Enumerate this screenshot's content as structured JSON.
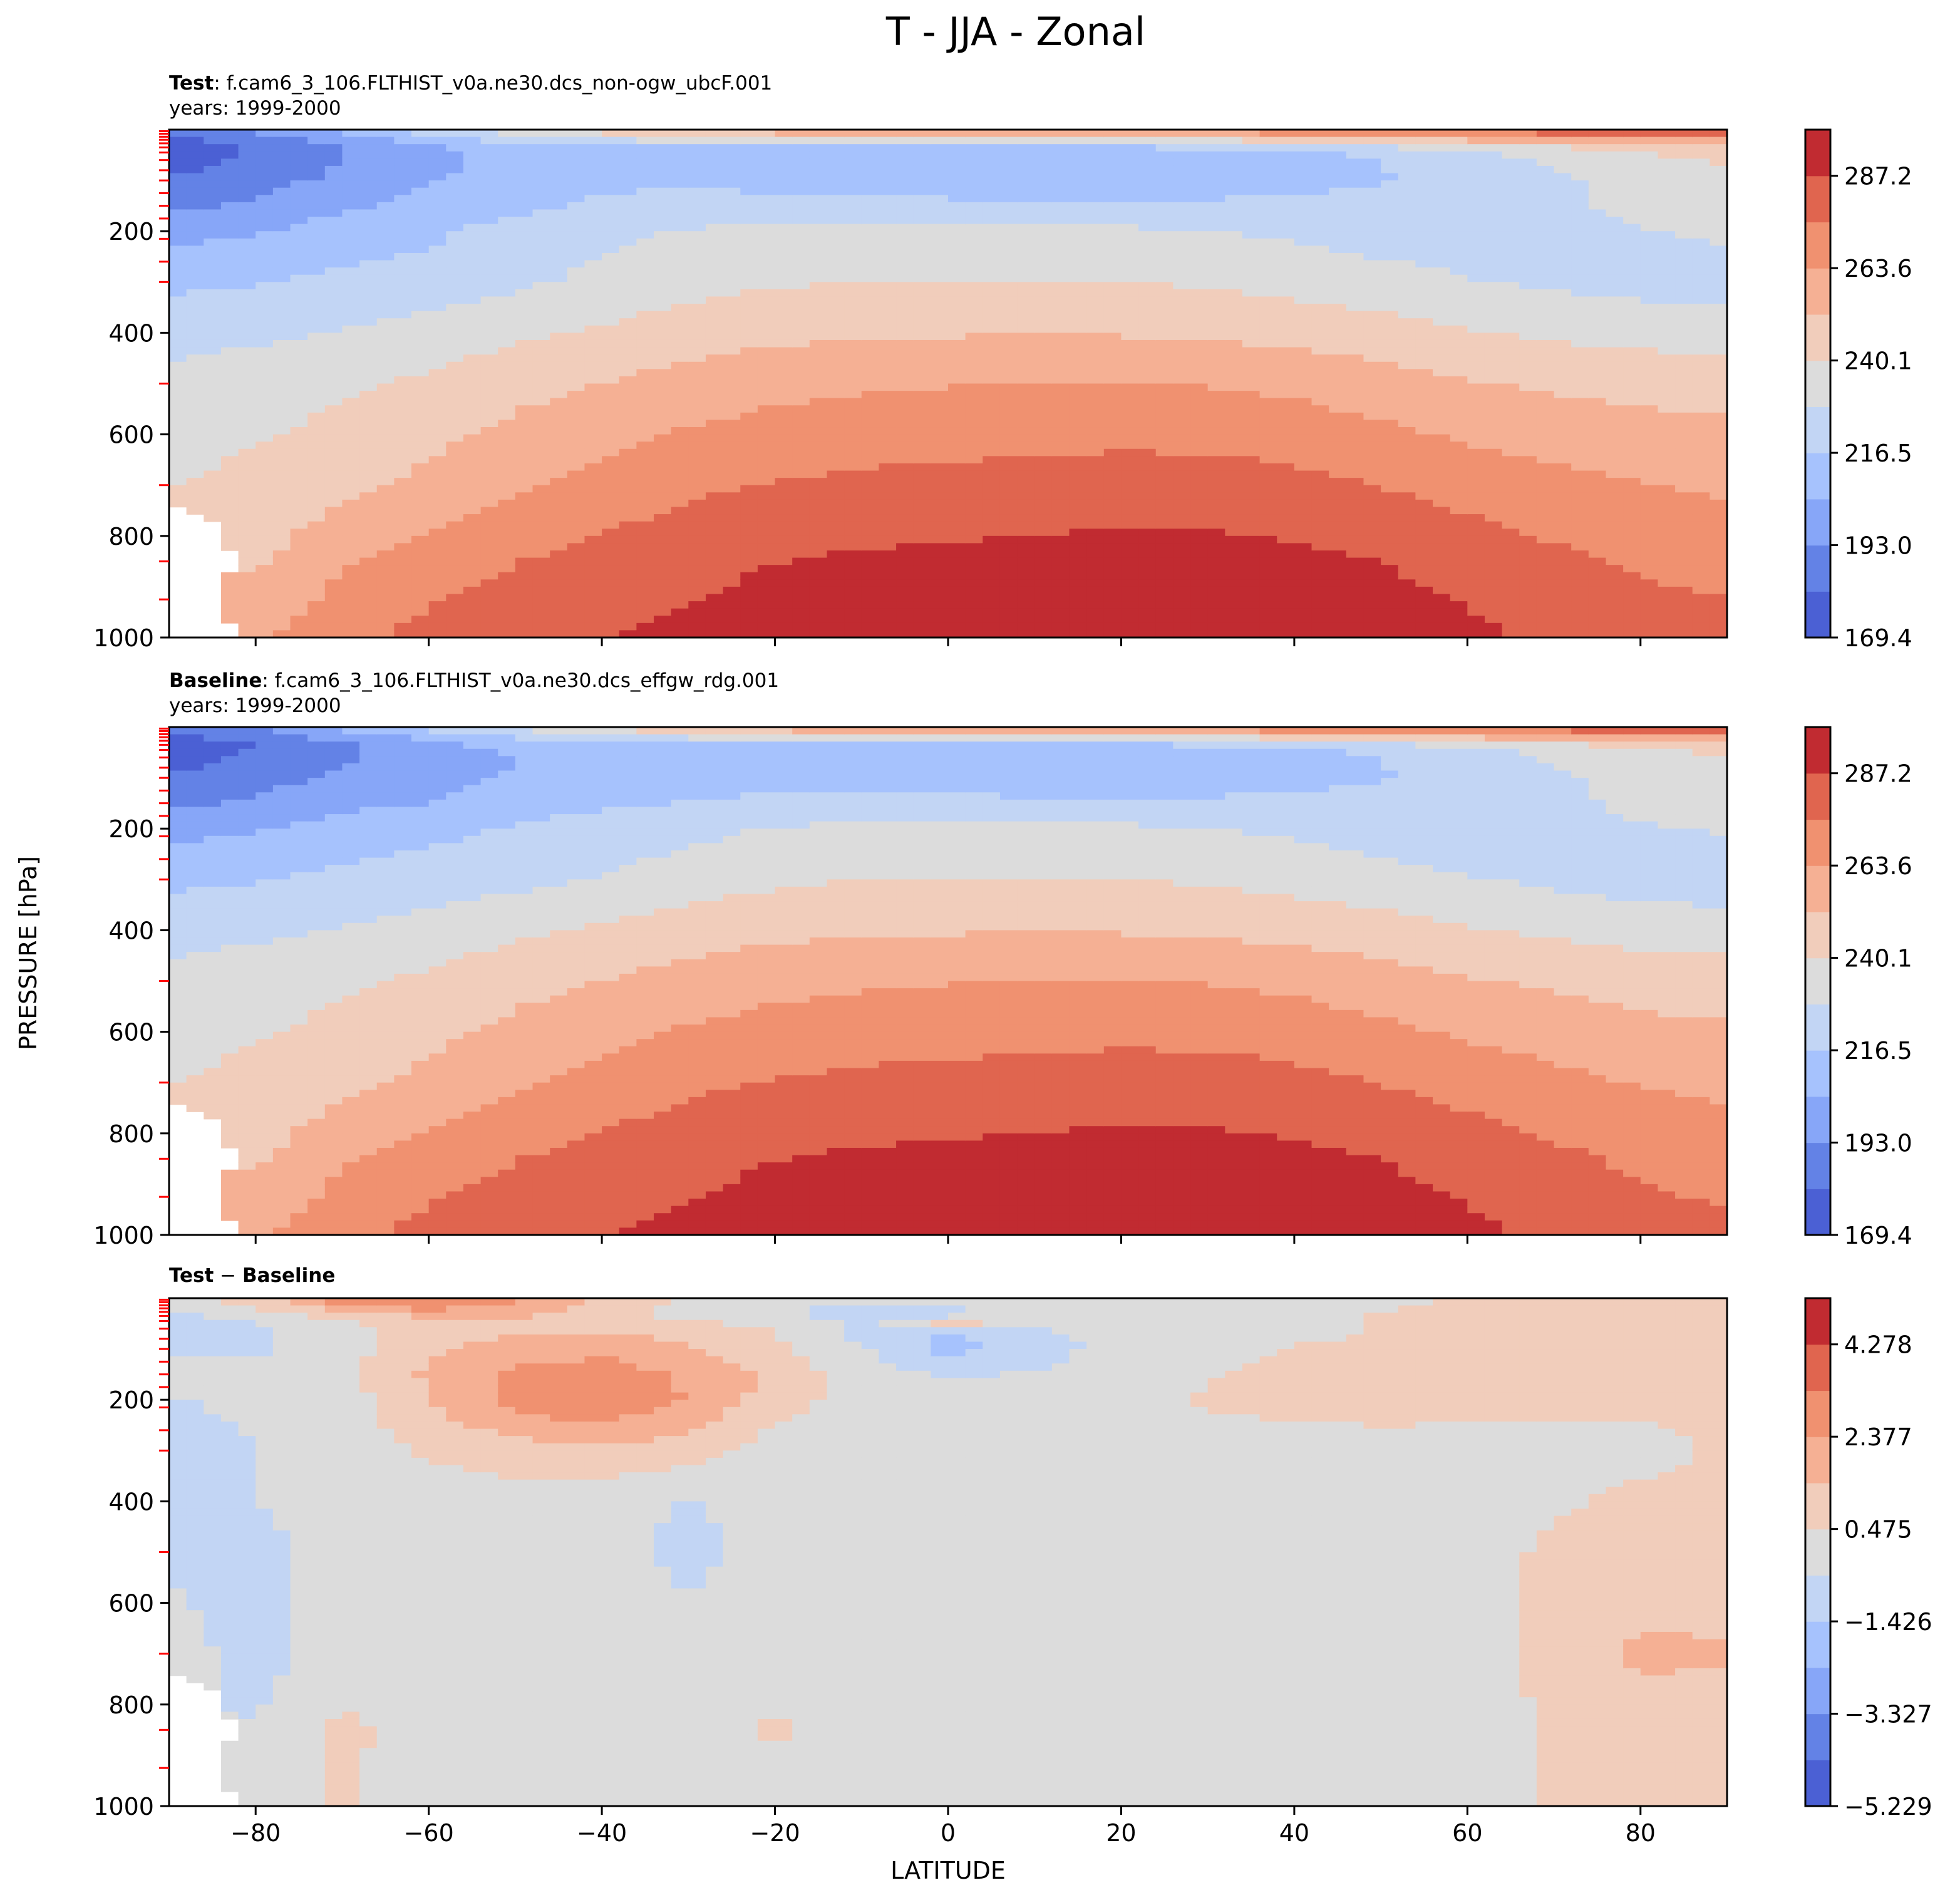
{
  "suptitle": "T - JJA - Zonal",
  "ylabel": "PRESSURE [hPa]",
  "xlabel": "LATITUDE",
  "chart_data": [
    {
      "type": "heatmap",
      "title_bold": "Test",
      "title_rest": ": f.cam6_3_106.FLTHIST_v0a.ne30.dcs_non-ogw_ubcF.001",
      "subtitle": "years: 1999-2000",
      "xlim": [
        -90,
        90
      ],
      "ylim": [
        1000,
        0
      ],
      "yticks": [
        "200",
        "400",
        "600",
        "800",
        "1000"
      ],
      "xticks": [],
      "colorbar": {
        "colors": [
          "#4b60d4",
          "#6382e6",
          "#87a6f8",
          "#a6c2fd",
          "#c2d5f4",
          "#dcdcdc",
          "#f1cdbb",
          "#f5b094",
          "#f09170",
          "#e0654f",
          "#c12b31"
        ],
        "ticks": [
          "169.4",
          "193.0",
          "216.5",
          "240.1",
          "263.6",
          "287.2"
        ],
        "range": [
          169.4,
          299.0
        ]
      },
      "pressure_levels": [
        1000,
        850,
        700,
        500,
        400,
        300,
        200,
        150,
        100,
        70,
        50,
        30,
        10
      ],
      "latitudes": [
        -90,
        -80,
        -70,
        -60,
        -50,
        -40,
        -30,
        -20,
        -10,
        0,
        10,
        20,
        30,
        40,
        50,
        60,
        70,
        80,
        90
      ],
      "values": [
        [
          null,
          262,
          272,
          279,
          283,
          287,
          290,
          293,
          295,
          296,
          297,
          298,
          298,
          297,
          294,
          290,
          285,
          281,
          279
        ],
        [
          null,
          250,
          262,
          270,
          275,
          280,
          284,
          287,
          289,
          290,
          291,
          292,
          292,
          290,
          287,
          283,
          278,
          274,
          272
        ],
        [
          240,
          243,
          248,
          255,
          262,
          268,
          273,
          276,
          278,
          279,
          280,
          281,
          281,
          279,
          275,
          271,
          267,
          264,
          262
        ],
        [
          232,
          235,
          238,
          242,
          248,
          252,
          257,
          260,
          262,
          263,
          264,
          264,
          263,
          261,
          257,
          253,
          250,
          248,
          247
        ],
        [
          224,
          226,
          229,
          233,
          238,
          242,
          246,
          249,
          250,
          251,
          251,
          251,
          250,
          248,
          245,
          241,
          238,
          236,
          235
        ],
        [
          214,
          216,
          219,
          222,
          226,
          231,
          236,
          239,
          240,
          240,
          240,
          240,
          239,
          236,
          233,
          229,
          226,
          224,
          223
        ],
        [
          200,
          204,
          210,
          214,
          221,
          226,
          229,
          231,
          232,
          231,
          231,
          230,
          229,
          226,
          223,
          222,
          223,
          228,
          230
        ],
        [
          190,
          195,
          203,
          208,
          214,
          219,
          221,
          222,
          221,
          220,
          219,
          219,
          219,
          219,
          220,
          222,
          225,
          233,
          236
        ],
        [
          182,
          188,
          196,
          204,
          210,
          214,
          214,
          212,
          210,
          208,
          208,
          209,
          210,
          213,
          216,
          220,
          226,
          234,
          238
        ],
        [
          178,
          184,
          193,
          202,
          209,
          213,
          211,
          208,
          205,
          204,
          204,
          205,
          208,
          212,
          216,
          222,
          229,
          236,
          240
        ],
        [
          176,
          182,
          192,
          202,
          209,
          213,
          212,
          210,
          208,
          207,
          207,
          208,
          210,
          214,
          219,
          225,
          232,
          239,
          243
        ],
        [
          175,
          182,
          193,
          204,
          212,
          217,
          218,
          217,
          216,
          216,
          217,
          219,
          221,
          225,
          230,
          236,
          242,
          247,
          250
        ],
        [
          182,
          192,
          206,
          219,
          230,
          240,
          247,
          252,
          255,
          257,
          258,
          260,
          262,
          265,
          268,
          272,
          276,
          279,
          281
        ]
      ]
    },
    {
      "type": "heatmap",
      "title_bold": "Baseline",
      "title_rest": ": f.cam6_3_106.FLTHIST_v0a.ne30.dcs_effgw_rdg.001",
      "subtitle": "years: 1999-2000",
      "xlim": [
        -90,
        90
      ],
      "ylim": [
        1000,
        0
      ],
      "yticks": [
        "200",
        "400",
        "600",
        "800",
        "1000"
      ],
      "xticks": [],
      "colorbar": {
        "colors": [
          "#4b60d4",
          "#6382e6",
          "#87a6f8",
          "#a6c2fd",
          "#c2d5f4",
          "#dcdcdc",
          "#f1cdbb",
          "#f5b094",
          "#f09170",
          "#e0654f",
          "#c12b31"
        ],
        "ticks": [
          "169.4",
          "193.0",
          "216.5",
          "240.1",
          "263.6",
          "287.2"
        ],
        "range": [
          169.4,
          299.0
        ]
      },
      "pressure_levels": [
        1000,
        850,
        700,
        500,
        400,
        300,
        200,
        150,
        100,
        70,
        50,
        30,
        10
      ],
      "latitudes": [
        -90,
        -80,
        -70,
        -60,
        -50,
        -40,
        -30,
        -20,
        -10,
        0,
        10,
        20,
        30,
        40,
        50,
        60,
        70,
        80,
        90
      ],
      "values": [
        [
          null,
          262,
          272,
          279,
          283,
          287,
          290,
          293,
          295,
          296,
          297,
          298,
          298,
          297,
          294,
          290,
          285,
          280,
          278
        ],
        [
          null,
          250,
          262,
          270,
          275,
          280,
          284,
          287,
          289,
          290,
          291,
          292,
          292,
          290,
          287,
          283,
          278,
          273,
          271
        ],
        [
          240,
          243,
          248,
          255,
          262,
          268,
          273,
          276,
          278,
          279,
          280,
          281,
          281,
          279,
          275,
          271,
          267,
          263,
          261
        ],
        [
          232,
          235,
          238,
          242,
          248,
          252,
          257,
          260,
          262,
          263,
          264,
          264,
          263,
          261,
          257,
          253,
          250,
          247,
          246
        ],
        [
          224,
          226,
          229,
          233,
          238,
          242,
          246,
          249,
          250,
          251,
          251,
          251,
          250,
          248,
          245,
          241,
          238,
          235,
          234
        ],
        [
          214,
          216,
          219,
          222,
          225,
          229,
          234,
          238,
          240,
          240,
          240,
          240,
          239,
          236,
          233,
          229,
          226,
          223,
          222
        ],
        [
          200,
          204,
          210,
          213,
          218,
          222,
          225,
          229,
          231,
          231,
          231,
          230,
          229,
          226,
          222,
          221,
          222,
          227,
          229
        ],
        [
          190,
          195,
          202,
          205,
          210,
          214,
          217,
          220,
          220,
          221,
          219,
          219,
          219,
          219,
          220,
          222,
          224,
          232,
          235
        ],
        [
          182,
          188,
          195,
          202,
          206,
          210,
          211,
          210,
          210,
          210,
          208,
          209,
          210,
          213,
          216,
          220,
          226,
          233,
          237
        ],
        [
          178,
          184,
          192,
          199,
          205,
          209,
          209,
          207,
          206,
          205,
          204,
          205,
          208,
          212,
          216,
          222,
          229,
          235,
          239
        ],
        [
          176,
          182,
          191,
          200,
          206,
          211,
          211,
          209,
          208,
          208,
          207,
          208,
          210,
          214,
          219,
          224,
          231,
          238,
          242
        ],
        [
          175,
          181,
          192,
          202,
          209,
          214,
          216,
          216,
          216,
          216,
          217,
          218,
          220,
          224,
          229,
          235,
          241,
          246,
          249
        ],
        [
          181,
          190,
          204,
          216,
          227,
          237,
          245,
          251,
          255,
          257,
          258,
          260,
          262,
          265,
          268,
          271,
          275,
          278,
          280
        ]
      ]
    },
    {
      "type": "heatmap",
      "title_bold": "Test",
      "title_mid": " − ",
      "title_bold2": "Baseline",
      "title_rest": "",
      "subtitle": "",
      "xlim": [
        -90,
        90
      ],
      "ylim": [
        1000,
        0
      ],
      "yticks": [
        "200",
        "400",
        "600",
        "800",
        "1000"
      ],
      "xticks": [
        "−80",
        "−60",
        "−40",
        "−20",
        "0",
        "20",
        "40",
        "60",
        "80"
      ],
      "xtick_values": [
        -80,
        -60,
        -40,
        -20,
        0,
        20,
        40,
        60,
        80
      ],
      "colorbar": {
        "colors": [
          "#4b60d4",
          "#6382e6",
          "#87a6f8",
          "#a6c2fd",
          "#c2d5f4",
          "#dcdcdc",
          "#f1cdbb",
          "#f5b094",
          "#f09170",
          "#e0654f",
          "#c12b31"
        ],
        "ticks": [
          "−5.229",
          "−3.327",
          "−1.426",
          "0.475",
          "2.377",
          "4.278"
        ],
        "range": [
          -5.229,
          5.229
        ]
      },
      "pressure_levels": [
        1000,
        850,
        700,
        500,
        400,
        300,
        200,
        150,
        100,
        70,
        50,
        30,
        10
      ],
      "latitudes": [
        -90,
        -80,
        -70,
        -60,
        -50,
        -40,
        -30,
        -20,
        -10,
        0,
        10,
        20,
        30,
        40,
        50,
        60,
        70,
        80,
        90
      ],
      "values": [
        [
          null,
          0.0,
          0.6,
          0.0,
          0.0,
          0.0,
          0.0,
          0.0,
          0.0,
          0.0,
          0.0,
          0.0,
          0.0,
          0.0,
          0.0,
          0.0,
          0.6,
          0.8,
          0.8
        ],
        [
          null,
          -0.4,
          0.7,
          0.0,
          0.0,
          0.0,
          0.0,
          0.6,
          0.0,
          0.0,
          0.0,
          0.0,
          0.0,
          0.0,
          0.0,
          0.0,
          0.6,
          1.0,
          1.0
        ],
        [
          0.0,
          -0.9,
          0.0,
          0.0,
          0.0,
          0.0,
          0.0,
          0.0,
          0.0,
          0.0,
          0.0,
          0.0,
          0.0,
          0.0,
          0.0,
          0.0,
          0.8,
          1.6,
          1.5
        ],
        [
          -0.7,
          -0.8,
          0.0,
          0.0,
          0.0,
          0.0,
          -0.8,
          0.0,
          0.0,
          0.0,
          0.0,
          0.0,
          0.0,
          0.0,
          0.0,
          0.0,
          0.7,
          0.9,
          0.9
        ],
        [
          -0.6,
          -0.5,
          0.0,
          0.0,
          0.0,
          0.0,
          -0.6,
          0.0,
          0.0,
          0.0,
          0.0,
          0.0,
          0.0,
          0.0,
          0.0,
          0.0,
          0.3,
          0.8,
          0.8
        ],
        [
          -0.6,
          -0.5,
          0.0,
          0.6,
          1.0,
          1.2,
          0.9,
          0.0,
          0.0,
          0.0,
          0.0,
          0.0,
          0.0,
          0.0,
          0.0,
          0.0,
          0.0,
          0.0,
          0.7
        ],
        [
          -0.5,
          -0.4,
          0.0,
          1.4,
          2.8,
          3.4,
          2.3,
          1.0,
          0.0,
          0.0,
          0.0,
          0.0,
          0.6,
          0.8,
          1.0,
          0.9,
          0.8,
          0.8,
          0.7
        ],
        [
          0.0,
          -0.3,
          0.3,
          1.6,
          2.6,
          2.8,
          2.2,
          1.2,
          0.0,
          -0.6,
          -0.4,
          0.0,
          0.4,
          0.8,
          0.8,
          0.8,
          0.8,
          0.7,
          0.7
        ],
        [
          -0.7,
          -0.6,
          0.0,
          1.2,
          1.8,
          2.2,
          1.5,
          0.6,
          -0.4,
          -1.8,
          -1.0,
          0.0,
          0.0,
          0.6,
          0.8,
          0.8,
          0.7,
          0.7,
          0.7
        ],
        [
          -0.8,
          -0.6,
          0.0,
          1.0,
          1.4,
          1.5,
          1.2,
          0.6,
          -0.8,
          -1.4,
          -0.8,
          0.0,
          0.0,
          0.0,
          0.7,
          0.7,
          0.7,
          0.7,
          0.7
        ],
        [
          -0.7,
          -0.5,
          0.3,
          1.1,
          1.2,
          1.0,
          0.6,
          0.3,
          -0.7,
          0.7,
          0.0,
          0.0,
          0.0,
          0.0,
          0.6,
          0.8,
          0.8,
          0.7,
          0.7
        ],
        [
          -0.6,
          0.0,
          1.0,
          1.8,
          1.7,
          0.7,
          0.2,
          -0.3,
          -1.1,
          -1.0,
          0.0,
          0.0,
          0.0,
          0.0,
          0.6,
          0.9,
          1.0,
          0.9,
          0.8
        ],
        [
          0.0,
          0.8,
          2.6,
          3.4,
          2.5,
          1.0,
          0.3,
          -0.3,
          -0.4,
          -0.2,
          0.0,
          0.0,
          0.0,
          0.0,
          0.0,
          0.8,
          1.0,
          1.0,
          0.9
        ]
      ]
    }
  ]
}
